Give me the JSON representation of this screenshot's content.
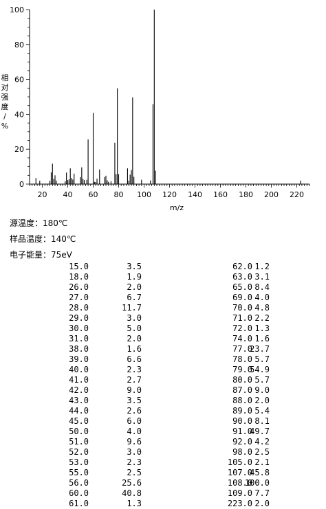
{
  "chart_data": {
    "type": "bar",
    "title": "",
    "xlabel": "m/z",
    "ylabel": "相对强度/%",
    "xlim": [
      10,
      230
    ],
    "ylim": [
      0,
      100
    ],
    "x_ticks": [
      20,
      40,
      60,
      80,
      100,
      120,
      140,
      160,
      180,
      200,
      220
    ],
    "y_ticks": [
      0,
      20,
      40,
      60,
      80,
      100
    ],
    "x": [
      15.0,
      18.0,
      26.0,
      27.0,
      28.0,
      29.0,
      30.0,
      31.0,
      38.0,
      39.0,
      40.0,
      41.0,
      42.0,
      43.0,
      44.0,
      45.0,
      50.0,
      51.0,
      52.0,
      53.0,
      55.0,
      56.0,
      60.0,
      61.0,
      62.0,
      63.0,
      65.0,
      69.0,
      70.0,
      71.0,
      72.0,
      74.0,
      77.0,
      78.0,
      79.0,
      80.0,
      87.0,
      88.0,
      89.0,
      90.0,
      91.0,
      92.0,
      98.0,
      105.0,
      107.0,
      108.0,
      109.0,
      223.0
    ],
    "values": [
      3.5,
      1.9,
      2.0,
      6.7,
      11.7,
      3.0,
      5.0,
      2.0,
      1.6,
      6.6,
      2.3,
      2.7,
      9.0,
      3.5,
      2.6,
      6.0,
      4.0,
      9.6,
      3.0,
      2.3,
      2.5,
      25.6,
      40.8,
      1.3,
      1.2,
      3.1,
      8.4,
      4.0,
      4.8,
      2.2,
      1.3,
      1.6,
      23.7,
      5.7,
      54.9,
      5.7,
      9.0,
      2.0,
      5.4,
      8.1,
      49.7,
      4.2,
      2.5,
      2.1,
      45.8,
      100.0,
      7.7,
      2.0
    ]
  },
  "info": {
    "source_temp": "源温度：180℃",
    "sample_temp": "样品温度：140℃",
    "electron_energy": "电子能量：75eV"
  },
  "table_left": [
    [
      "15.0",
      "3.5"
    ],
    [
      "18.0",
      "1.9"
    ],
    [
      "26.0",
      "2.0"
    ],
    [
      "27.0",
      "6.7"
    ],
    [
      "28.0",
      "11.7"
    ],
    [
      "29.0",
      "3.0"
    ],
    [
      "30.0",
      "5.0"
    ],
    [
      "31.0",
      "2.0"
    ],
    [
      "38.0",
      "1.6"
    ],
    [
      "39.0",
      "6.6"
    ],
    [
      "40.0",
      "2.3"
    ],
    [
      "41.0",
      "2.7"
    ],
    [
      "42.0",
      "9.0"
    ],
    [
      "43.0",
      "3.5"
    ],
    [
      "44.0",
      "2.6"
    ],
    [
      "45.0",
      "6.0"
    ],
    [
      "50.0",
      "4.0"
    ],
    [
      "51.0",
      "9.6"
    ],
    [
      "52.0",
      "3.0"
    ],
    [
      "53.0",
      "2.3"
    ],
    [
      "55.0",
      "2.5"
    ],
    [
      "56.0",
      "25.6"
    ],
    [
      "60.0",
      "40.8"
    ],
    [
      "61.0",
      "1.3"
    ]
  ],
  "table_right": [
    [
      "62.0",
      "1.2"
    ],
    [
      "63.0",
      "3.1"
    ],
    [
      "65.0",
      "8.4"
    ],
    [
      "69.0",
      "4.0"
    ],
    [
      "70.0",
      "4.8"
    ],
    [
      "71.0",
      "2.2"
    ],
    [
      "72.0",
      "1.3"
    ],
    [
      "74.0",
      "1.6"
    ],
    [
      "77.0",
      "23.7"
    ],
    [
      "78.0",
      "5.7"
    ],
    [
      "79.0",
      "54.9"
    ],
    [
      "80.0",
      "5.7"
    ],
    [
      "87.0",
      "9.0"
    ],
    [
      "88.0",
      "2.0"
    ],
    [
      "89.0",
      "5.4"
    ],
    [
      "90.0",
      "8.1"
    ],
    [
      "91.0",
      "49.7"
    ],
    [
      "92.0",
      "4.2"
    ],
    [
      "98.0",
      "2.5"
    ],
    [
      "105.0",
      "2.1"
    ],
    [
      "107.0",
      "45.8"
    ],
    [
      "108.0",
      "100.0"
    ],
    [
      "109.0",
      "7.7"
    ],
    [
      "223.0",
      "2.0"
    ]
  ]
}
